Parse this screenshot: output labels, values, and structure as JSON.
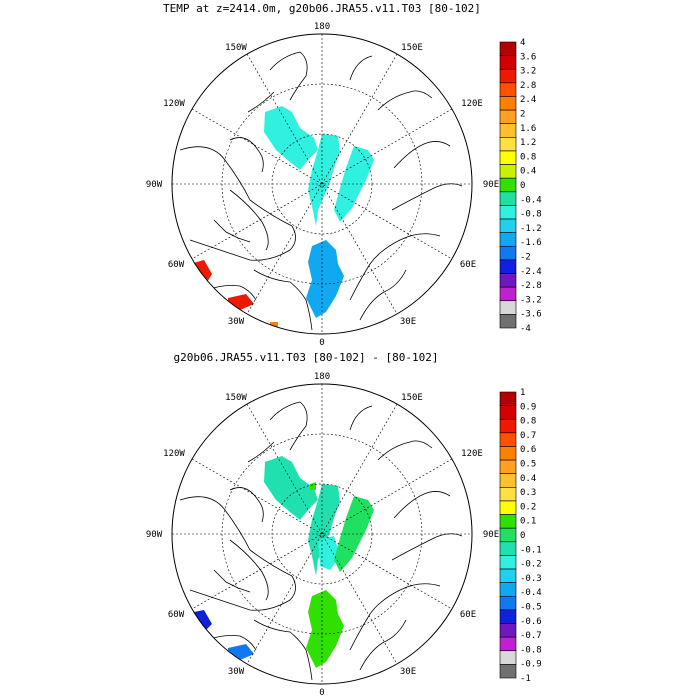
{
  "panels": [
    {
      "id": "top",
      "title": "TEMP at z=2414.0m, g20b06.JRA55.v11.T03 [80-102]",
      "lon_labels": {
        "n": "180",
        "ne": "150E",
        "ene": "120E",
        "e": "90E",
        "ese": "60E",
        "se": "30E",
        "s": "0",
        "sw": "30W",
        "wsw": "60W",
        "w": "90W",
        "wnw": "120W",
        "nw": "150W"
      },
      "colorbar": {
        "labels": [
          "4",
          "3.6",
          "3.2",
          "2.8",
          "2.4",
          "2",
          "1.6",
          "1.2",
          "0.8",
          "0.4",
          "0",
          "-0.4",
          "-0.8",
          "-1.2",
          "-1.6",
          "-2",
          "-2.4",
          "-2.8",
          "-3.2",
          "-3.6",
          "-4"
        ],
        "colors": [
          "#b40000",
          "#d20000",
          "#ee1a00",
          "#ff5000",
          "#ff8000",
          "#ffa020",
          "#ffc030",
          "#ffe040",
          "#ffff00",
          "#c8f000",
          "#30e000",
          "#20e0a0",
          "#30f0e0",
          "#20d0f0",
          "#10a8f0",
          "#1078f0",
          "#1020e0",
          "#7018c0",
          "#c020d0",
          "#d8d8d8",
          "#707070"
        ]
      }
    },
    {
      "id": "bottom",
      "title": "g20b06.JRA55.v11.T03 [80-102] -  [80-102]",
      "lon_labels": {
        "n": "180",
        "ne": "150E",
        "ene": "120E",
        "e": "90E",
        "ese": "60E",
        "se": "30E",
        "s": "0",
        "sw": "30W",
        "wsw": "60W",
        "w": "90W",
        "wnw": "120W",
        "nw": "150W"
      },
      "colorbar": {
        "labels": [
          "1",
          "0.9",
          "0.8",
          "0.7",
          "0.6",
          "0.5",
          "0.4",
          "0.3",
          "0.2",
          "0.1",
          "0",
          "-0.1",
          "-0.2",
          "-0.3",
          "-0.4",
          "-0.5",
          "-0.6",
          "-0.7",
          "-0.8",
          "-0.9",
          "-1"
        ],
        "colors": [
          "#b40000",
          "#d20000",
          "#ee1a00",
          "#ff5000",
          "#ff8000",
          "#ffa020",
          "#ffc030",
          "#ffe040",
          "#ffff00",
          "#30e000",
          "#20e060",
          "#20e0b0",
          "#30f0e0",
          "#20d0f0",
          "#10a8f0",
          "#1078f0",
          "#1020e0",
          "#7018c0",
          "#c020d0",
          "#d8d8d8",
          "#707070"
        ]
      }
    }
  ]
}
